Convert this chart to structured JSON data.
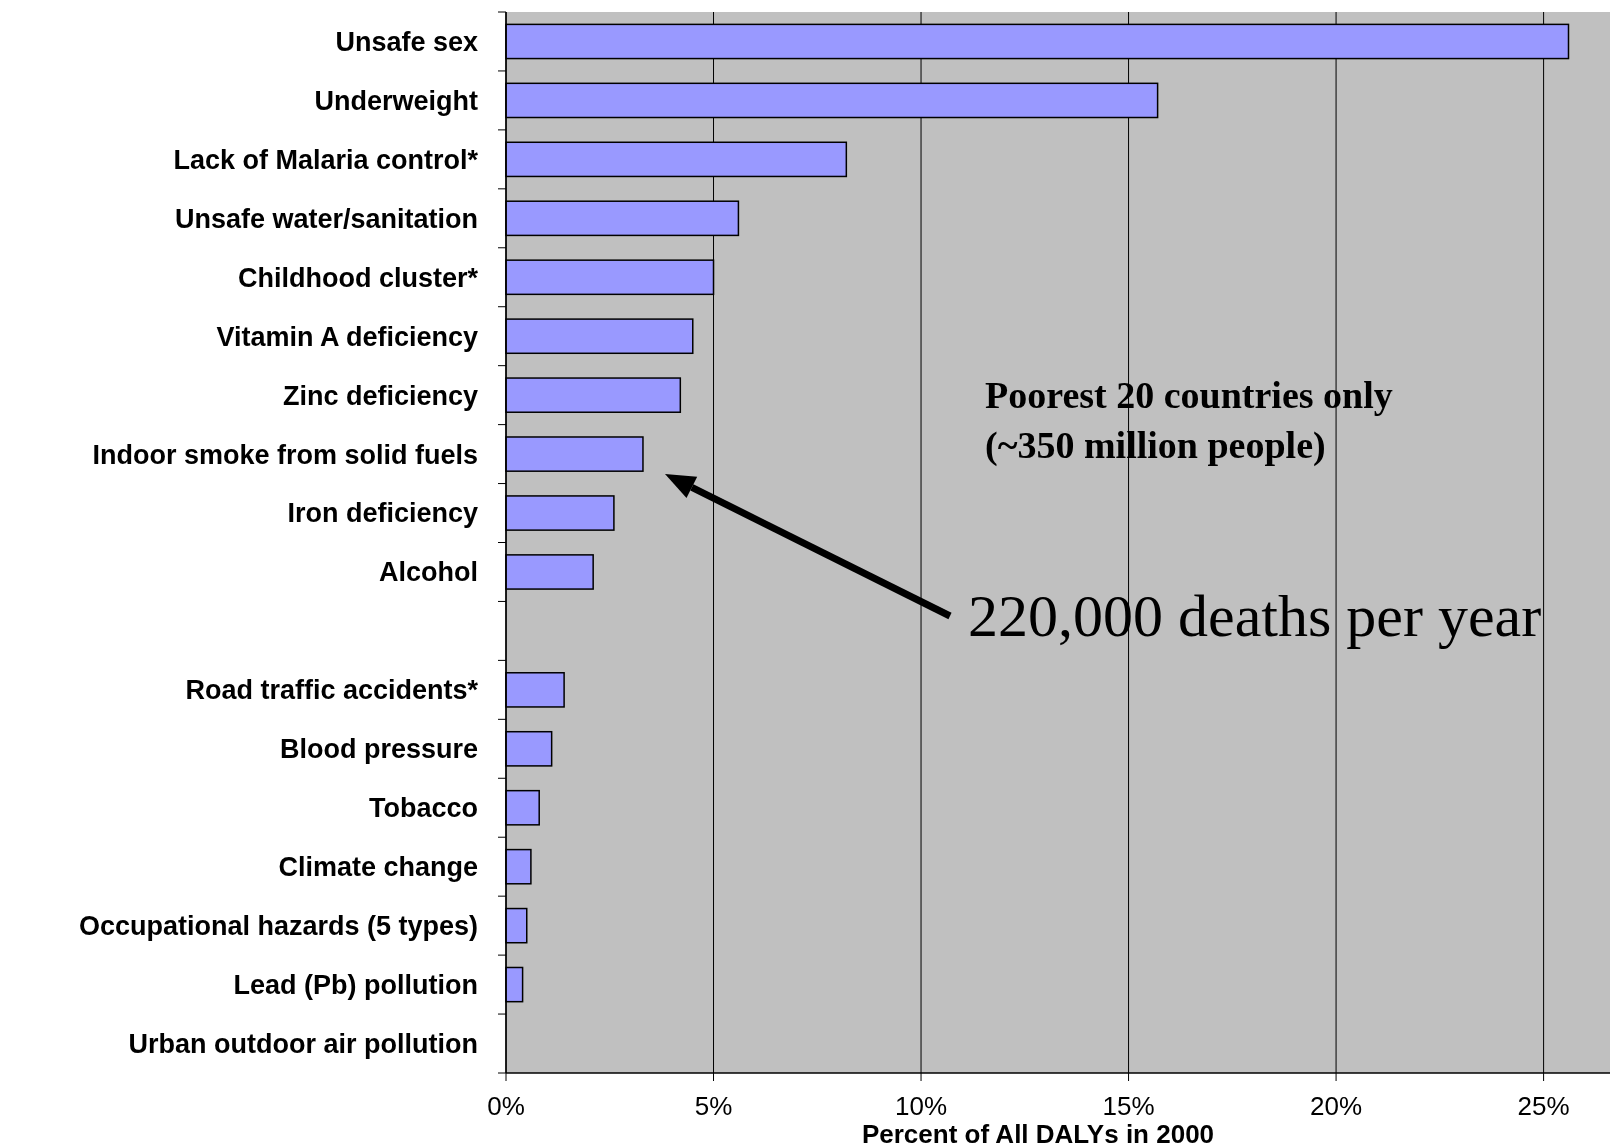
{
  "chart_data": {
    "type": "bar",
    "orientation": "horizontal",
    "categories": [
      "Unsafe sex",
      "Underweight",
      "Lack of Malaria control*",
      "Unsafe water/sanitation",
      "Childhood cluster*",
      "Vitamin A deficiency",
      "Zinc deficiency",
      "Indoor smoke from solid fuels",
      "Iron deficiency",
      "Alcohol",
      null,
      "Road traffic accidents*",
      "Blood pressure",
      "Tobacco",
      "Climate change",
      "Occupational hazards (5 types)",
      "Lead (Pb) pollution",
      "Urban outdoor air pollution"
    ],
    "values": [
      25.6,
      15.7,
      8.2,
      5.6,
      5.0,
      4.5,
      4.2,
      3.3,
      2.6,
      2.1,
      null,
      1.4,
      1.1,
      0.8,
      0.6,
      0.5,
      0.4,
      0
    ],
    "color": "#9999ff",
    "xlim": [
      0,
      26.6
    ],
    "xticks": [
      {
        "value": 0,
        "label": "0%"
      },
      {
        "value": 5,
        "label": "5%"
      },
      {
        "value": 10,
        "label": "10%"
      },
      {
        "value": 15,
        "label": "15%"
      },
      {
        "value": 20,
        "label": "20%"
      },
      {
        "value": 25,
        "label": "25%"
      }
    ],
    "xlabel": "Percent of All DALYs in 2000",
    "grid": "x",
    "annotations": [
      "Poorest 20 countries only",
      "(~350 million people)",
      "220,000 deaths per year"
    ]
  }
}
